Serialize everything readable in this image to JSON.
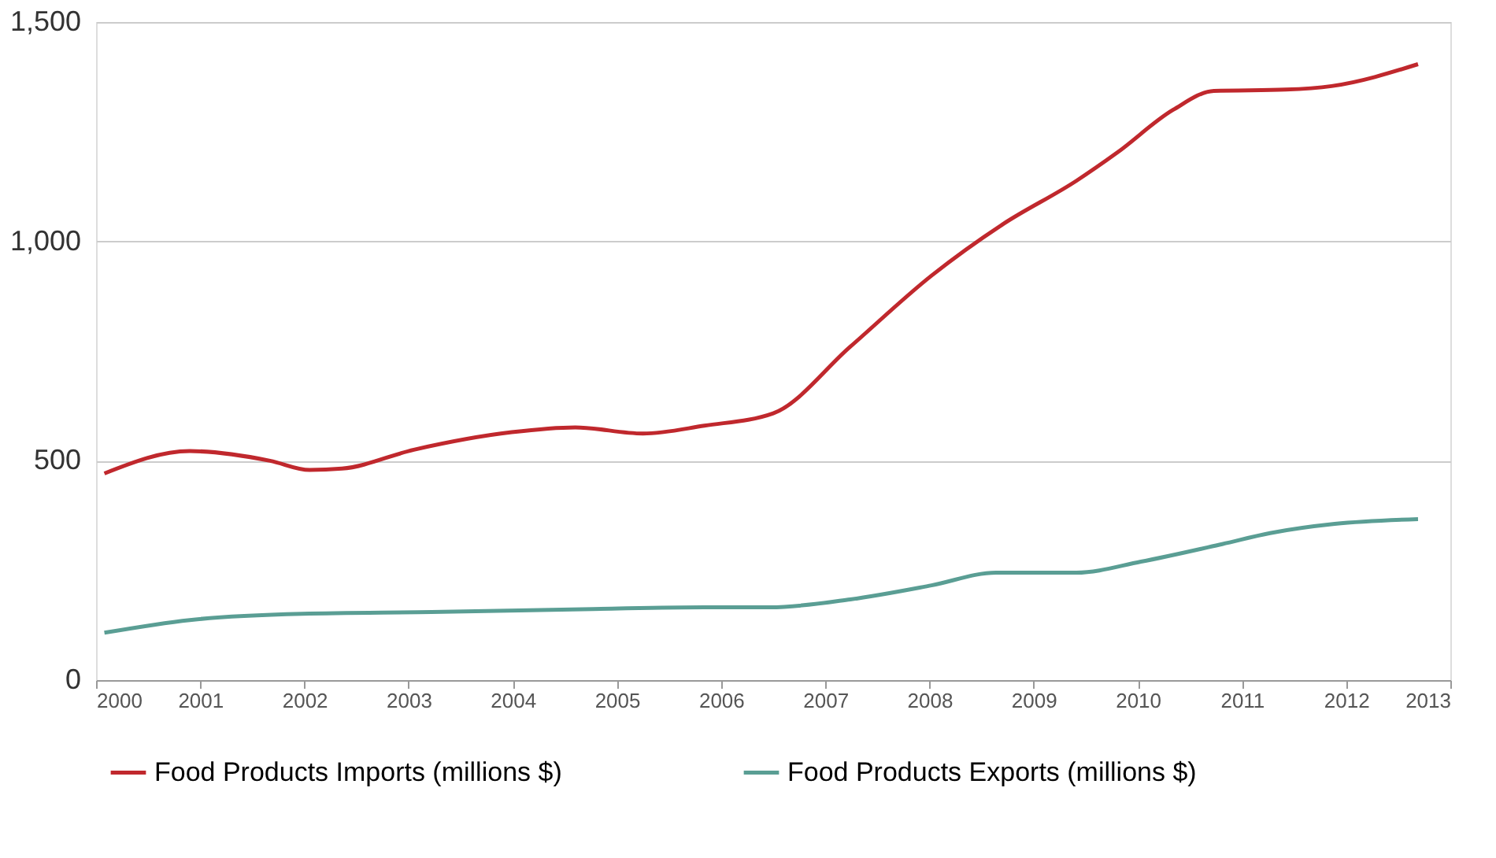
{
  "chart_data": {
    "type": "line",
    "xlim": [
      2000,
      2013
    ],
    "xticks": [
      2000,
      2001,
      2002,
      2003,
      2004,
      2005,
      2006,
      2007,
      2008,
      2009,
      2010,
      2011,
      2012,
      2013
    ],
    "ylim": [
      0,
      1500
    ],
    "yticks": [
      {
        "value": 0,
        "label": "0"
      },
      {
        "value": 500,
        "label": "500"
      },
      {
        "value": 1000,
        "label": "1,000"
      },
      {
        "value": 1500,
        "label": "1,500"
      }
    ],
    "grid": "y",
    "legend": "bottom",
    "marker": "none",
    "line_style": "solid",
    "series": [
      {
        "name": "Food Products Imports (millions $)",
        "color": "#c0282d",
        "x": [
          2000.08,
          2000.9,
          2001.67,
          2002.05,
          2002.36,
          2003.05,
          2003.99,
          2004.6,
          2005.25,
          2005.84,
          2006.5,
          2007.24,
          2008.02,
          2008.71,
          2009.41,
          2009.8,
          2010.34,
          2010.73,
          2011.42,
          2011.86,
          2012.69
        ],
        "values": [
          471,
          522,
          500,
          479,
          482,
          525,
          565,
          576,
          562,
          580,
          608,
          760,
          922,
          1040,
          1138,
          1202,
          1300,
          1343,
          1346,
          1354,
          1404
        ]
      },
      {
        "name": "Food Products Exports (millions $)",
        "color": "#5a9e94",
        "x": [
          2000.08,
          2000.9,
          2001.98,
          2003.22,
          2004.77,
          2005.84,
          2006.47,
          2007.24,
          2008.02,
          2008.64,
          2009.41,
          2010.03,
          2010.81,
          2011.27,
          2011.89,
          2012.69
        ],
        "values": [
          108,
          137,
          151,
          155,
          162,
          166,
          166,
          184,
          216,
          245,
          245,
          270,
          310,
          335,
          356,
          367
        ]
      }
    ]
  }
}
